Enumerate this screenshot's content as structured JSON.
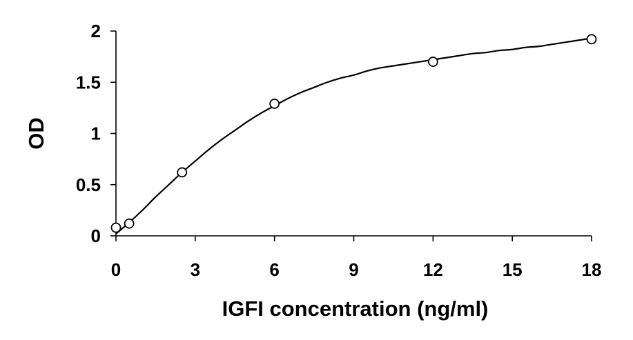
{
  "chart_data": {
    "type": "scatter",
    "title": "",
    "xlabel": "IGFI concentration (ng/ml)",
    "ylabel": "OD",
    "xlim": [
      0,
      18
    ],
    "ylim": [
      0,
      2
    ],
    "xticks": [
      0,
      3,
      6,
      9,
      12,
      15,
      18
    ],
    "yticks": [
      0,
      0.5,
      1,
      1.5,
      2
    ],
    "xtick_labels": [
      "0",
      "3",
      "6",
      "9",
      "12",
      "15",
      "18"
    ],
    "ytick_labels": [
      "0",
      "0.5",
      "1",
      "1.5",
      "2"
    ],
    "grid": false,
    "legend": "none",
    "series": [
      {
        "marker": "open-circle",
        "x": [
          0,
          0.5,
          2.5,
          6,
          12,
          18
        ],
        "y": [
          0.08,
          0.12,
          0.62,
          1.29,
          1.7,
          1.92
        ]
      }
    ],
    "fit_curve": {
      "style": "smooth-line",
      "color": "#000000",
      "x": [
        0,
        0.5,
        1,
        1.5,
        2,
        2.5,
        3,
        3.5,
        4,
        4.5,
        5,
        5.5,
        6,
        6.5,
        7,
        7.5,
        8,
        8.5,
        9,
        9.5,
        10,
        10.5,
        11,
        11.5,
        12,
        12.5,
        13,
        13.5,
        14,
        14.5,
        15,
        15.5,
        16,
        16.5,
        17,
        17.5,
        18
      ],
      "y": [
        0.02,
        0.13,
        0.25,
        0.38,
        0.5,
        0.62,
        0.73,
        0.84,
        0.94,
        1.03,
        1.12,
        1.2,
        1.27,
        1.34,
        1.4,
        1.45,
        1.5,
        1.54,
        1.57,
        1.61,
        1.64,
        1.66,
        1.68,
        1.7,
        1.72,
        1.74,
        1.76,
        1.78,
        1.79,
        1.81,
        1.82,
        1.84,
        1.85,
        1.87,
        1.89,
        1.91,
        1.93
      ]
    }
  }
}
